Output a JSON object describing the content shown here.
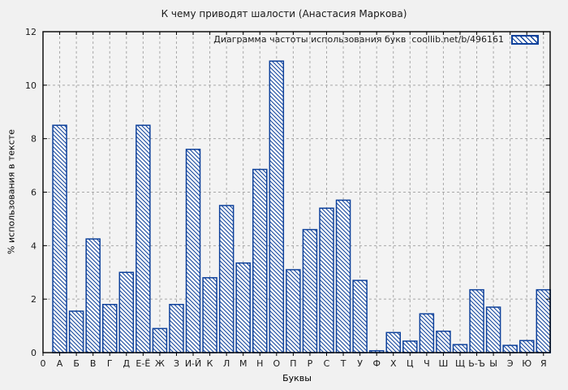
{
  "chart_data": {
    "type": "bar",
    "title": "К чему приводят шалости (Анастасия Маркова)",
    "legend": {
      "label": "Диаграмма частоты использования букв  coollib.net/b/496161",
      "position": "top-right-inside",
      "swatch": "blue-hatched-box"
    },
    "xlabel": "Буквы",
    "ylabel": "% использования в тексте",
    "x_origin_label": "0",
    "categories": [
      "А",
      "Б",
      "В",
      "Г",
      "Д",
      "Е-Ё",
      "Ж",
      "З",
      "И-Й",
      "К",
      "Л",
      "М",
      "Н",
      "О",
      "П",
      "Р",
      "С",
      "Т",
      "У",
      "Ф",
      "Х",
      "Ц",
      "Ч",
      "Ш",
      "Щ",
      "Ь-Ъ",
      "Ы",
      "Э",
      "Ю",
      "Я"
    ],
    "values": [
      8.5,
      1.55,
      4.25,
      1.8,
      3.0,
      8.5,
      0.9,
      1.8,
      7.6,
      2.8,
      5.5,
      3.35,
      6.85,
      10.9,
      3.1,
      4.6,
      5.4,
      5.7,
      2.7,
      0.07,
      0.75,
      0.43,
      1.45,
      0.8,
      0.3,
      2.35,
      1.7,
      0.27,
      0.45,
      2.35
    ],
    "ylim": [
      0,
      12
    ],
    "yticks": [
      0,
      2,
      4,
      6,
      8,
      10,
      12
    ],
    "grid": true,
    "legend_hatch_direction": "backslash",
    "colors": {
      "bar_stroke": "#0e419b",
      "bar_fill": "#fbfbfb",
      "grid": "#a8a8a8",
      "frame": "#000000",
      "background": "#f1f1f1",
      "plot_background": "#f3f3f3",
      "text": "#1a1a1a"
    }
  }
}
